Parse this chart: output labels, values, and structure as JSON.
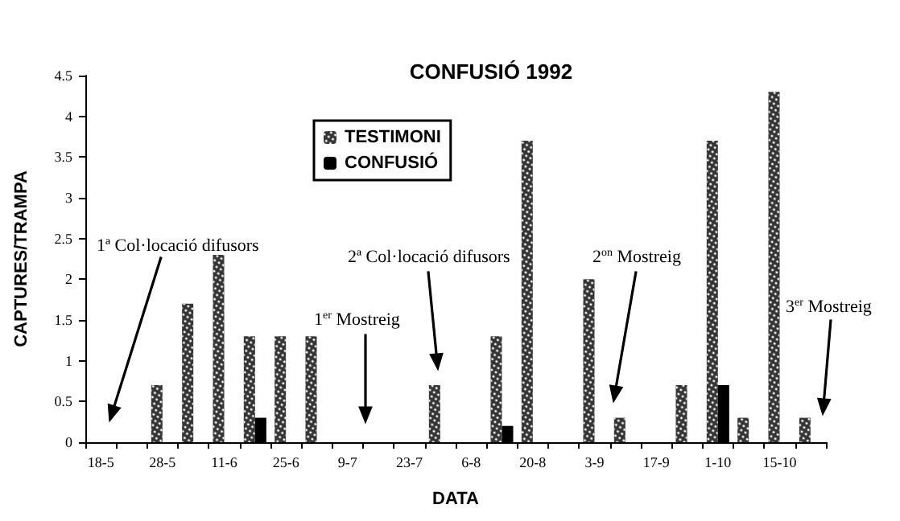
{
  "chart_data": {
    "type": "bar",
    "title": "CONFUSIÓ 1992",
    "xlabel": "DATA",
    "ylabel": "CAPTURES/TRAMPA",
    "categories": [
      "18-5",
      null,
      "28-5",
      null,
      "11-6",
      null,
      "25-6",
      null,
      "9-7",
      null,
      "23-7",
      null,
      "6-8",
      null,
      "20-8",
      null,
      "3-9",
      null,
      "17-9",
      null,
      "1-10",
      null,
      "15-10",
      null
    ],
    "series": [
      {
        "name": "TESTIMONI",
        "color": "#333333",
        "values": [
          null,
          null,
          0.7,
          1.7,
          2.3,
          1.3,
          1.3,
          1.3,
          null,
          null,
          null,
          0.7,
          null,
          1.3,
          3.7,
          null,
          2.0,
          0.3,
          null,
          0.7,
          3.7,
          0.3,
          4.3,
          0.3
        ]
      },
      {
        "name": "CONFUSIÓ",
        "color": "#000000",
        "values": [
          null,
          null,
          null,
          null,
          null,
          0.3,
          null,
          null,
          null,
          null,
          null,
          null,
          null,
          0.2,
          null,
          null,
          null,
          null,
          null,
          null,
          0.7,
          null,
          null,
          null
        ]
      }
    ],
    "ylim": [
      0,
      4.5
    ],
    "yticks": [
      0,
      0.5,
      1,
      1.5,
      2,
      2.5,
      3,
      3.5,
      4,
      4.5
    ],
    "grid": false,
    "legend": "top",
    "annotations": [
      "1ª Col·locació difusors",
      "1$^{er}$ Mostreig",
      "2ª Col·locació difusors",
      "2$^{on}$ Mostreig",
      "3$^{er}$ Mostreig"
    ]
  }
}
